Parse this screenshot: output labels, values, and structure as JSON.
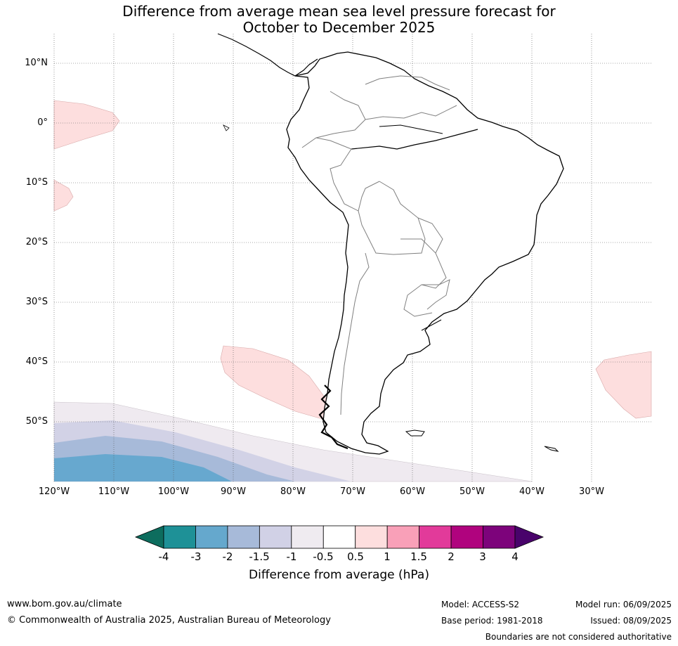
{
  "title": {
    "line1": "Difference from average mean sea level pressure forecast for",
    "line2": "October to December 2025"
  },
  "map": {
    "lat_labels": [
      "10°N",
      "0°",
      "10°S",
      "20°S",
      "30°S",
      "40°S",
      "50°S"
    ],
    "lon_labels": [
      "120°W",
      "110°W",
      "100°W",
      "90°W",
      "80°W",
      "70°W",
      "60°W",
      "50°W",
      "40°W",
      "30°W"
    ],
    "colors": {
      "land_border": "#000000",
      "country_border": "#808080",
      "grid": "#555555",
      "anomaly_pos_0_5": "#fddede",
      "anomaly_neg_0_5": "#efeaf0",
      "anomaly_neg_1": "#d2d2e6",
      "anomaly_neg_1_5": "#a7bad9",
      "anomaly_neg_2": "#67a8cf"
    }
  },
  "colorbar": {
    "ticks": [
      "-4",
      "-3",
      "-2",
      "-1.5",
      "-1",
      "-0.5",
      "0.5",
      "1",
      "1.5",
      "2",
      "3",
      "4"
    ],
    "colors": [
      "#0d6d5e",
      "#1e9197",
      "#65a8cd",
      "#a7bad9",
      "#d1d1e6",
      "#efebf0",
      "#ffffff",
      "#fddede",
      "#f9a0b8",
      "#e23a9a",
      "#b0037e",
      "#7d037b",
      "#49036b"
    ],
    "label": "Difference from average (hPa)"
  },
  "footer": {
    "website": "www.bom.gov.au/climate",
    "copyright": "© Commonwealth of Australia 2025, Australian Bureau of Meteorology",
    "model": "Model: ACCESS-S2",
    "base_period": "Base period: 1981-2018",
    "model_run": "Model run: 06/09/2025",
    "issued": "Issued: 08/09/2025",
    "disclaimer": "Boundaries are not considered authoritative"
  }
}
